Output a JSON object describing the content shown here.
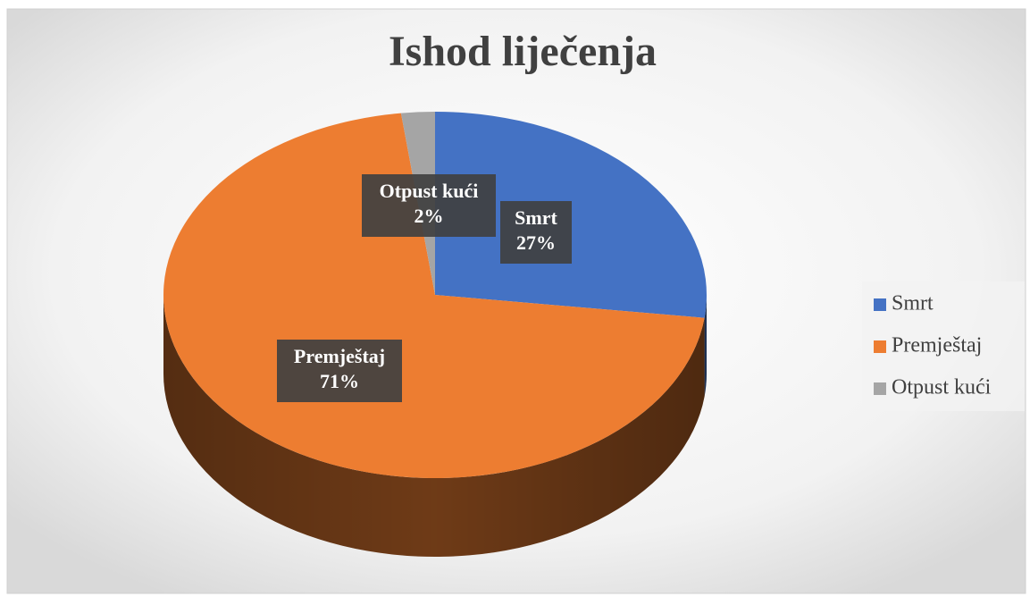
{
  "chart_data": {
    "type": "pie",
    "title": "Ishod liječenja",
    "categories": [
      "Smrt",
      "Premještaj",
      "Otpust kući"
    ],
    "values": [
      27,
      71,
      2
    ],
    "value_labels": [
      "27%",
      "71%",
      "2%"
    ],
    "colors": [
      "#4472c4",
      "#ed7d31",
      "#a5a5a5"
    ],
    "legend": "right"
  }
}
